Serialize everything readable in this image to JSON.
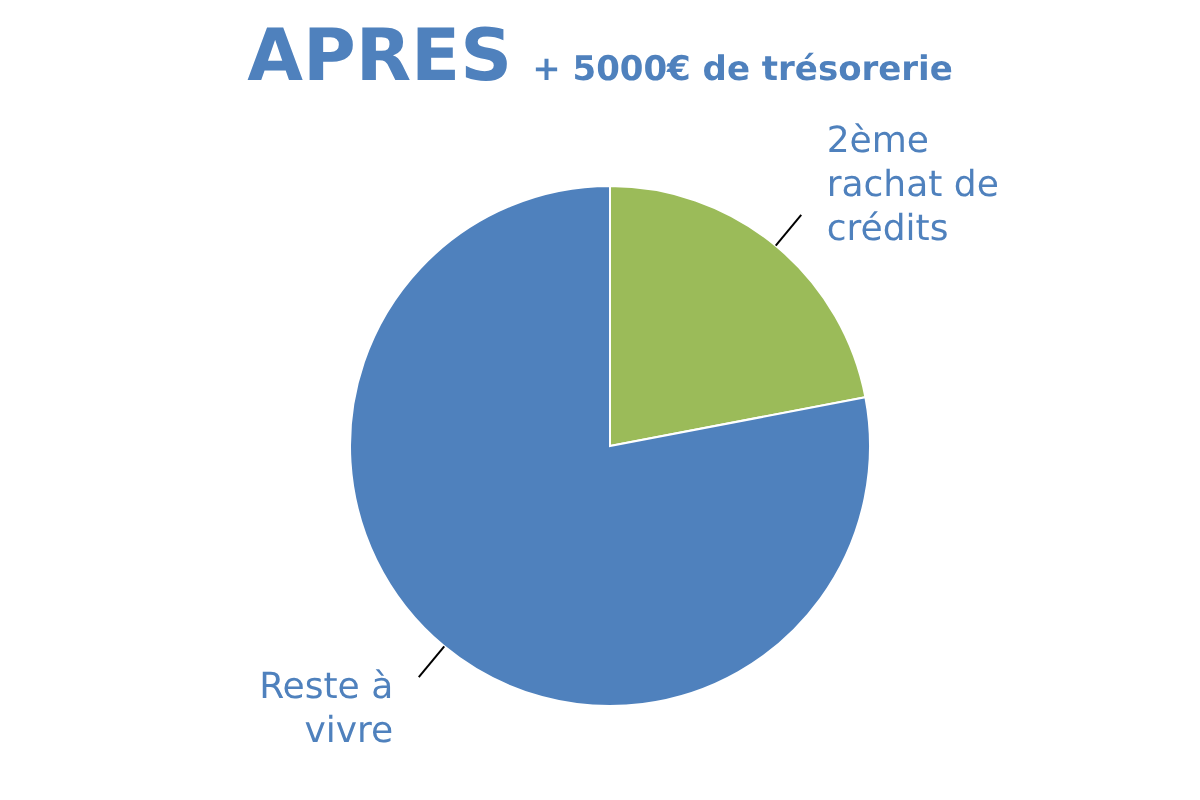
{
  "chart_data": {
    "type": "pie",
    "title": "APRES",
    "subtitle": "+ 5000€ de trésorerie",
    "categories": [
      "2ème rachat de crédits",
      "Reste à vivre"
    ],
    "values": [
      22,
      78
    ],
    "colors": [
      "#9bbb59",
      "#4f81bd"
    ],
    "legend": false
  }
}
